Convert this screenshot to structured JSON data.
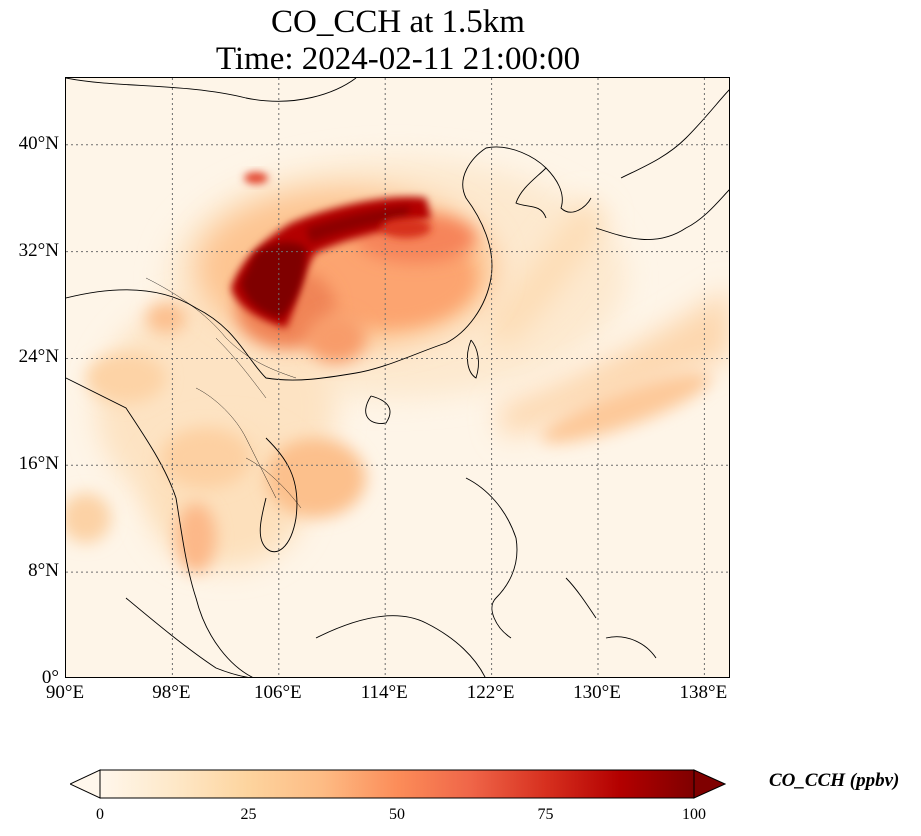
{
  "title": {
    "line1": "CO_CCH at 1.5km",
    "line2": "Time: 2024-02-11 21:00:00"
  },
  "map": {
    "extent": {
      "lon": [
        90,
        140
      ],
      "lat": [
        0,
        45
      ]
    },
    "lat_ticks": [
      "0°",
      "8°N",
      "16°N",
      "24°N",
      "32°N",
      "40°N"
    ],
    "lon_ticks": [
      "90°E",
      "98°E",
      "106°E",
      "114°E",
      "122°E",
      "130°E",
      "138°E"
    ],
    "gridlines": true,
    "colormap": "OrRd"
  },
  "colorbar": {
    "label": "CO_CCH (ppbv)",
    "ticks": [
      "0",
      "25",
      "50",
      "75",
      "100"
    ],
    "range": [
      0,
      100
    ],
    "extend": "both",
    "colors": [
      "#fff7ec",
      "#fee8c8",
      "#fdd49e",
      "#fdbb84",
      "#fc8d59",
      "#ef6548",
      "#d7301f",
      "#b30000",
      "#7f0000"
    ]
  }
}
